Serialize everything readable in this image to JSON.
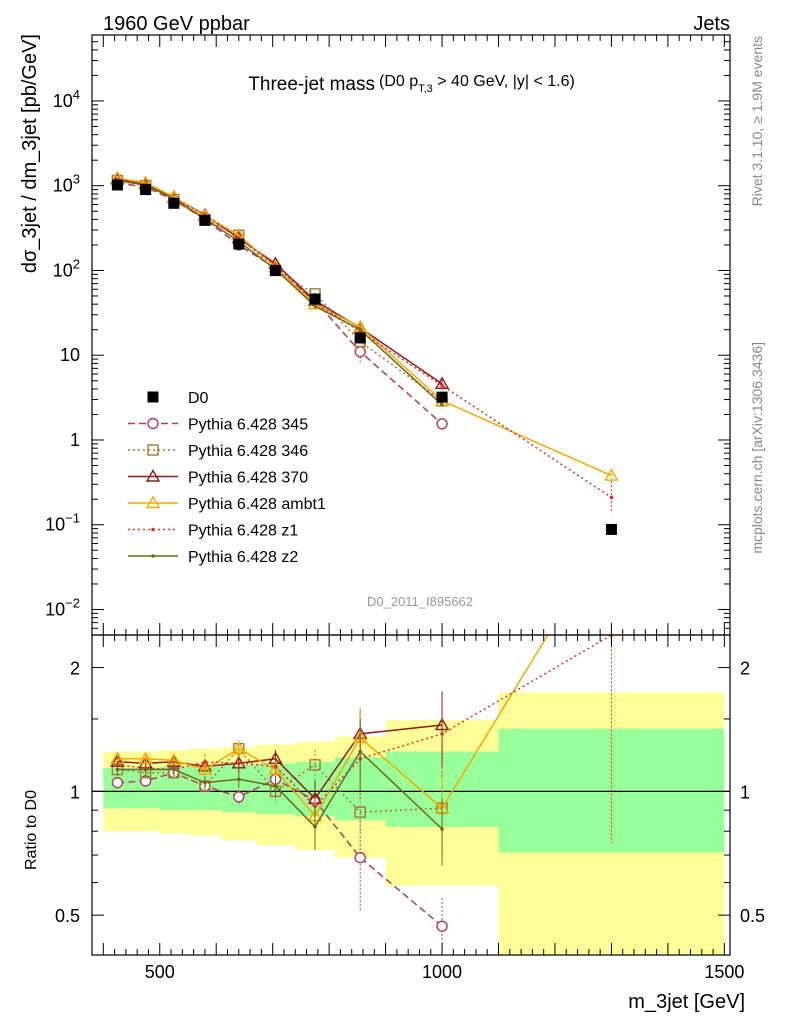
{
  "header": {
    "left": "1960 GeV ppbar",
    "right": "Jets"
  },
  "title": {
    "main": "Three-jet mass",
    "open": "(D0 p",
    "sub": "T,3",
    "close": " > 40 GeV, |y| < 1.6)"
  },
  "side_label_top": "Rivet 3.1.10, ≥ 1.9M events",
  "side_label_bottom": "mcplots.cern.ch [arXiv:1306.3436]",
  "watermark": "D0_2011_I895662",
  "colors": {
    "D0": "#000000",
    "p345": "#b23a5a",
    "p346": "#a07838",
    "p370": "#8b1a1a",
    "ambt1": "#f5a800",
    "z1": "#e03020",
    "z2": "#6b6b1a",
    "band_inner": "#99ff99",
    "band_outer": "#ffff99"
  },
  "chart_data": [
    {
      "type": "line",
      "panel": "main",
      "ylabel": "dσ_3jet / dm_3jet [pb/GeV]",
      "yscale": "log",
      "ylim": [
        0.005,
        60000
      ],
      "xlim": [
        380,
        1510
      ],
      "y_ticks": [
        {
          "v": 0.01,
          "base": "10",
          "exp": "−2"
        },
        {
          "v": 0.1,
          "base": "10",
          "exp": "−1"
        },
        {
          "v": 1,
          "base": "1",
          "exp": ""
        },
        {
          "v": 10,
          "base": "10",
          "exp": ""
        },
        {
          "v": 100,
          "base": "10",
          "exp": "2"
        },
        {
          "v": 1000,
          "base": "10",
          "exp": "3"
        },
        {
          "v": 10000,
          "base": "10",
          "exp": "4"
        }
      ],
      "x": [
        425,
        475,
        525,
        580,
        640,
        705,
        775,
        855,
        1000,
        1300
      ],
      "series": [
        {
          "name": "D0",
          "key": "D0",
          "marker": "square",
          "line": "none",
          "values": [
            1020,
            900,
            620,
            390,
            205,
            100,
            46,
            16,
            3.2,
            0.088
          ]
        },
        {
          "name": "Pythia 6.428 345",
          "key": "p345",
          "marker": "circle",
          "line": "dashed",
          "values": [
            1080,
            960,
            680,
            400,
            200,
            106,
            44,
            11,
            1.55,
            null
          ],
          "err": [
            0,
            0,
            0,
            0,
            0,
            0,
            0,
            0.35,
            0.12,
            null
          ]
        },
        {
          "name": "Pythia 6.428 346",
          "key": "p346",
          "marker": "square-open",
          "line": "dotted",
          "values": [
            1150,
            1000,
            690,
            400,
            260,
            100,
            53,
            14.5,
            2.9,
            null
          ],
          "err": [
            0,
            0,
            0,
            0,
            0,
            0,
            0,
            0.1,
            0.1,
            null
          ]
        },
        {
          "name": "Pythia 6.428 370",
          "key": "p370",
          "marker": "triangle-open",
          "line": "solid",
          "values": [
            1200,
            1050,
            730,
            450,
            240,
            120,
            44,
            21,
            4.6,
            null
          ],
          "err": [
            0.03,
            0.03,
            0.03,
            0.03,
            0.05,
            0.06,
            0.1,
            0.12,
            0.12,
            null
          ]
        },
        {
          "name": "Pythia 6.428 ambt1",
          "key": "ambt1",
          "marker": "triangle-open",
          "line": "solid",
          "values": [
            1230,
            1080,
            740,
            440,
            260,
            110,
            40,
            21.5,
            2.9,
            0.38
          ],
          "err": [
            0.03,
            0.03,
            0.03,
            0.03,
            0.05,
            0.06,
            0.1,
            0.12,
            0.12,
            0.2
          ]
        },
        {
          "name": "Pythia 6.428 z1",
          "key": "z1",
          "marker": "dot",
          "line": "dotted",
          "values": [
            1180,
            1030,
            700,
            460,
            240,
            115,
            42,
            19,
            4.4,
            0.21
          ],
          "err": [
            0.03,
            0.03,
            0.03,
            0.03,
            0.05,
            0.06,
            0.1,
            0.12,
            0.12,
            0.55
          ]
        },
        {
          "name": "Pythia 6.428 z2",
          "key": "z2",
          "marker": "dot",
          "line": "solid",
          "values": [
            1150,
            1020,
            700,
            410,
            220,
            103,
            38,
            20,
            2.6,
            null
          ],
          "err": [
            0.03,
            0.03,
            0.03,
            0.03,
            0.05,
            0.06,
            0.1,
            0.12,
            0.12,
            null
          ]
        }
      ]
    },
    {
      "type": "line",
      "panel": "ratio",
      "ylabel": "Ratio to D0",
      "xlabel": "m_3jet [GeV]",
      "yscale": "log",
      "ylim": [
        0.4,
        2.4
      ],
      "xlim": [
        380,
        1510
      ],
      "y_ticks": [
        0.5,
        1,
        2
      ],
      "x_ticks": [
        500,
        1000,
        1500
      ],
      "x": [
        425,
        475,
        525,
        580,
        640,
        705,
        775,
        855,
        1000,
        1300
      ],
      "bands": [
        {
          "x0": 400,
          "x1": 450,
          "inner": [
            0.91,
            1.14
          ],
          "outer": [
            0.8,
            1.25
          ]
        },
        {
          "x0": 450,
          "x1": 500,
          "inner": [
            0.91,
            1.14
          ],
          "outer": [
            0.8,
            1.25
          ]
        },
        {
          "x0": 500,
          "x1": 550,
          "inner": [
            0.9,
            1.15
          ],
          "outer": [
            0.79,
            1.26
          ]
        },
        {
          "x0": 550,
          "x1": 610,
          "inner": [
            0.9,
            1.15
          ],
          "outer": [
            0.78,
            1.27
          ]
        },
        {
          "x0": 610,
          "x1": 670,
          "inner": [
            0.89,
            1.16
          ],
          "outer": [
            0.76,
            1.28
          ]
        },
        {
          "x0": 670,
          "x1": 740,
          "inner": [
            0.88,
            1.17
          ],
          "outer": [
            0.74,
            1.3
          ]
        },
        {
          "x0": 740,
          "x1": 810,
          "inner": [
            0.87,
            1.18
          ],
          "outer": [
            0.72,
            1.32
          ]
        },
        {
          "x0": 810,
          "x1": 900,
          "inner": [
            0.85,
            1.21
          ],
          "outer": [
            0.69,
            1.36
          ]
        },
        {
          "x0": 900,
          "x1": 1100,
          "inner": [
            0.82,
            1.25
          ],
          "outer": [
            0.59,
            1.49
          ]
        },
        {
          "x0": 1100,
          "x1": 1500,
          "inner": [
            0.71,
            1.42
          ],
          "outer": [
            0.4,
            1.74
          ]
        }
      ],
      "series": [
        {
          "name": "Pythia 6.428 345",
          "key": "p345",
          "marker": "circle",
          "line": "dashed",
          "values": [
            1.05,
            1.06,
            1.11,
            1.03,
            0.97,
            1.07,
            0.95,
            0.69,
            0.47,
            null
          ],
          "err": [
            0.03,
            0.03,
            0.03,
            0.03,
            0.04,
            0.05,
            0.08,
            0.18,
            0.08,
            null
          ]
        },
        {
          "name": "Pythia 6.428 346",
          "key": "p346",
          "marker": "square-open",
          "line": "dotted",
          "values": [
            1.13,
            1.11,
            1.11,
            1.03,
            1.27,
            1.0,
            1.16,
            0.89,
            0.91,
            null
          ],
          "err": [
            0.03,
            0.03,
            0.03,
            0.03,
            0.05,
            0.06,
            0.1,
            0.1,
            0.12,
            null
          ]
        },
        {
          "name": "Pythia 6.428 370",
          "key": "p370",
          "marker": "triangle-open",
          "line": "solid",
          "values": [
            1.18,
            1.17,
            1.18,
            1.15,
            1.17,
            1.2,
            0.96,
            1.38,
            1.45,
            null
          ],
          "err": [
            0.03,
            0.03,
            0.03,
            0.03,
            0.05,
            0.06,
            0.1,
            0.2,
            0.3,
            null
          ]
        },
        {
          "name": "Pythia 6.428 ambt1",
          "key": "ambt1",
          "marker": "triangle-open",
          "line": "solid",
          "values": [
            1.2,
            1.2,
            1.19,
            1.13,
            1.27,
            1.13,
            0.87,
            1.35,
            0.91,
            4.3
          ],
          "err": [
            0.04,
            0.04,
            0.04,
            0.04,
            0.06,
            0.06,
            0.1,
            0.25,
            0.2,
            1.5
          ]
        },
        {
          "name": "Pythia 6.428 z1",
          "key": "z1",
          "marker": "dot",
          "line": "dotted",
          "values": [
            1.16,
            1.14,
            1.13,
            1.18,
            1.17,
            1.15,
            0.92,
            1.2,
            1.38,
            2.4
          ],
          "err": [
            0.05,
            0.05,
            0.05,
            0.05,
            0.06,
            0.07,
            0.1,
            0.25,
            0.3,
            1.65
          ]
        },
        {
          "name": "Pythia 6.428 z2",
          "key": "z2",
          "marker": "dot",
          "line": "solid",
          "values": [
            1.13,
            1.13,
            1.13,
            1.05,
            1.07,
            1.03,
            0.82,
            1.25,
            0.81,
            null
          ],
          "err": [
            0.04,
            0.04,
            0.04,
            0.04,
            0.05,
            0.06,
            0.1,
            0.25,
            0.15,
            null
          ]
        }
      ]
    }
  ]
}
